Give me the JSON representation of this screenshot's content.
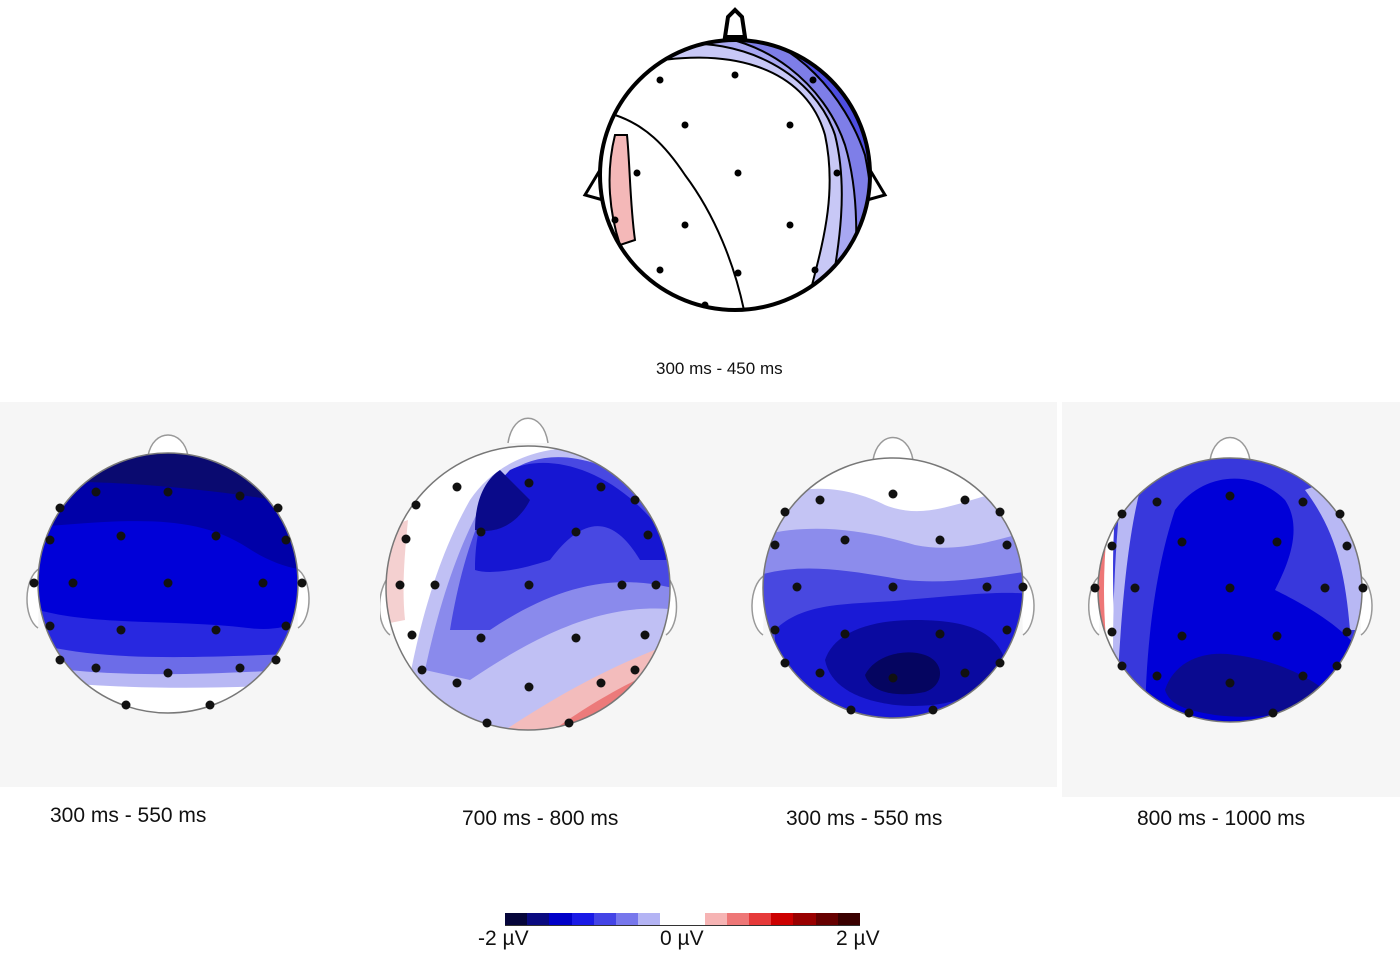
{
  "maps": [
    {
      "id": "top",
      "label": "300 ms - 450 ms"
    },
    {
      "id": "b1",
      "label": "300 ms - 550 ms"
    },
    {
      "id": "b2",
      "label": "700 ms - 800 ms"
    },
    {
      "id": "b3",
      "label": "300 ms - 550 ms"
    },
    {
      "id": "b4",
      "label": "800 ms - 1000 ms"
    }
  ],
  "colorbar": {
    "min_label": "-2 µV",
    "mid_label": "0 µV",
    "max_label": "2 µV",
    "colors": [
      "#05053a",
      "#0a0a80",
      "#0000c8",
      "#1a1ae6",
      "#4444e6",
      "#7777ec",
      "#b4b4f4",
      "#ffffff",
      "#ffffff",
      "#f6b4b4",
      "#ee7777",
      "#e63a3a",
      "#cc0000",
      "#990000",
      "#660000",
      "#3a0000"
    ]
  }
}
